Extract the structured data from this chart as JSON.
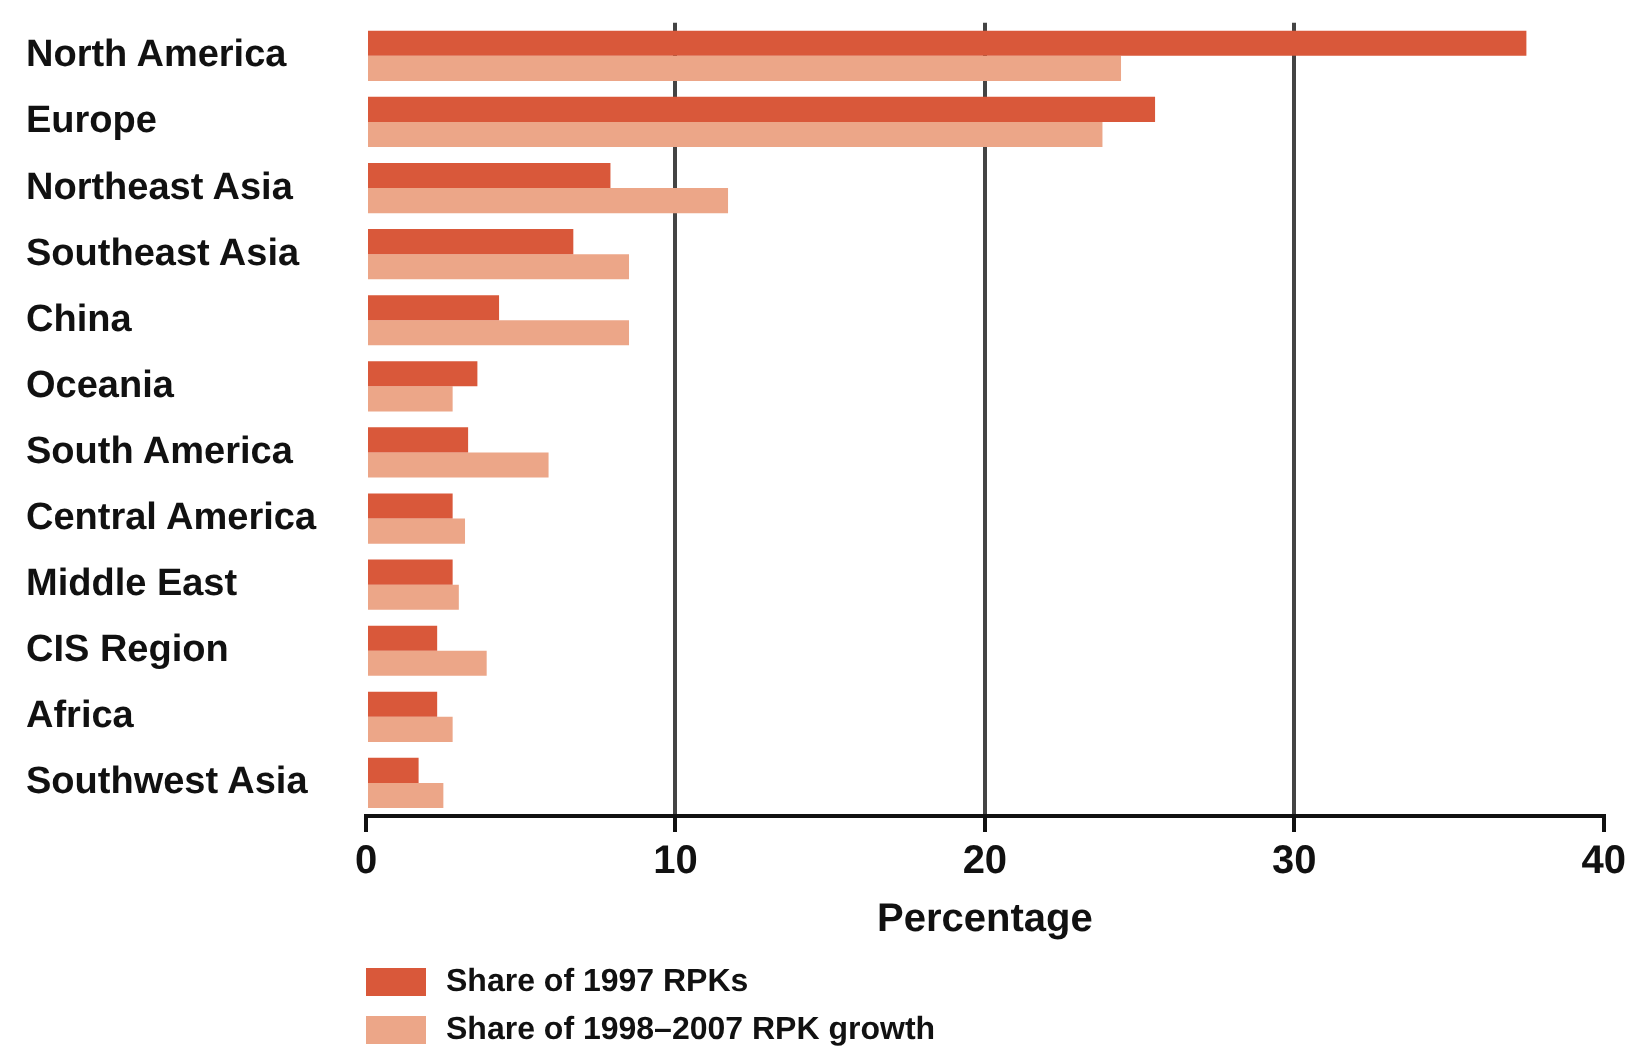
{
  "chart_data": {
    "type": "bar",
    "orientation": "horizontal",
    "xlabel": "Percentage",
    "categories": [
      "North America",
      "Europe",
      "Northeast Asia",
      "Southeast Asia",
      "China",
      "Oceania",
      "South America",
      "Central America",
      "Middle East",
      "CIS Region",
      "Africa",
      "Southwest Asia"
    ],
    "series": [
      {
        "name": "Share of 1997 RPKs",
        "color": "#d9583a",
        "values": [
          37.5,
          25.5,
          7.9,
          6.7,
          4.3,
          3.6,
          3.3,
          2.8,
          2.8,
          2.3,
          2.3,
          1.7
        ]
      },
      {
        "name": "Share of 1998–2007 RPK growth",
        "color": "#eca688",
        "values": [
          24.4,
          23.8,
          11.7,
          8.5,
          8.5,
          2.8,
          5.9,
          3.2,
          3.0,
          3.9,
          2.8,
          2.5
        ]
      }
    ],
    "xlim": [
      0,
      40
    ],
    "xticks": [
      0,
      10,
      20,
      30,
      40
    ],
    "grid": "x",
    "legend": "bottom"
  }
}
